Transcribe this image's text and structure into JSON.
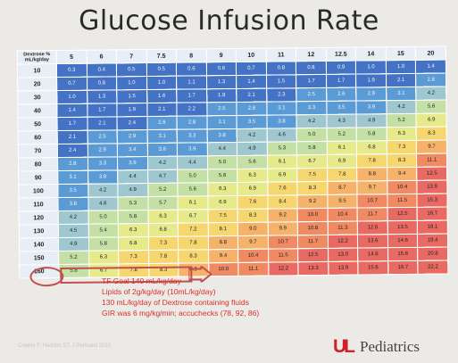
{
  "slide": {
    "title": "Glucose Infusion Rate",
    "notes": [
      "TF Goal 140 mL/kg/day",
      "Lipids of 2g/kg/day (10mL/kg/day)",
      "130 mL/kg/day of Dextrose containing fluids",
      "GIR was 6 mg/kg/min; accuchecks (78, 92, 86)"
    ],
    "citation": "Cowley F, Haddon ST, J Perinatol 2015",
    "logo_mark": "UL",
    "logo_text": "Pediatrics"
  },
  "table": {
    "corner_label_1": "Dextrose %",
    "corner_label_2": "mL/kg/day",
    "dextrose_columns": [
      "5",
      "6",
      "7",
      "7.5",
      "8",
      "9",
      "10",
      "11",
      "12",
      "12.5",
      "14",
      "15",
      "20"
    ],
    "row_labels": [
      "10",
      "20",
      "30",
      "40",
      "50",
      "60",
      "70",
      "80",
      "90",
      "100",
      "110",
      "120",
      "130",
      "140",
      "150",
      "160"
    ],
    "cells": [
      [
        "0.3",
        "0.4",
        "0.5",
        "0.5",
        "0.6",
        "0.6",
        "0.7",
        "0.8",
        "0.8",
        "0.9",
        "1.0",
        "1.0",
        "1.4"
      ],
      [
        "0.7",
        "0.8",
        "1.0",
        "1.0",
        "1.1",
        "1.3",
        "1.4",
        "1.5",
        "1.7",
        "1.7",
        "1.9",
        "2.1",
        "2.8"
      ],
      [
        "1.0",
        "1.3",
        "1.5",
        "1.6",
        "1.7",
        "1.9",
        "2.1",
        "2.3",
        "2.5",
        "2.6",
        "2.9",
        "3.1",
        "4.2"
      ],
      [
        "1.4",
        "1.7",
        "1.9",
        "2.1",
        "2.2",
        "2.5",
        "2.8",
        "3.1",
        "3.3",
        "3.5",
        "3.9",
        "4.2",
        "5.6"
      ],
      [
        "1.7",
        "2.1",
        "2.4",
        "2.6",
        "2.8",
        "3.1",
        "3.5",
        "3.8",
        "4.2",
        "4.3",
        "4.9",
        "5.2",
        "6.9"
      ],
      [
        "2.1",
        "2.5",
        "2.9",
        "3.1",
        "3.3",
        "3.8",
        "4.2",
        "4.6",
        "5.0",
        "5.2",
        "5.8",
        "6.3",
        "8.3"
      ],
      [
        "2.4",
        "2.9",
        "3.4",
        "3.6",
        "3.9",
        "4.4",
        "4.9",
        "5.3",
        "5.8",
        "6.1",
        "6.8",
        "7.3",
        "9.7"
      ],
      [
        "2.8",
        "3.3",
        "3.9",
        "4.2",
        "4.4",
        "5.0",
        "5.6",
        "6.1",
        "6.7",
        "6.9",
        "7.8",
        "8.3",
        "11.1"
      ],
      [
        "3.1",
        "3.8",
        "4.4",
        "4.7",
        "5.0",
        "5.6",
        "6.3",
        "6.9",
        "7.5",
        "7.8",
        "8.8",
        "9.4",
        "12.5"
      ],
      [
        "3.5",
        "4.2",
        "4.9",
        "5.2",
        "5.6",
        "6.3",
        "6.9",
        "7.6",
        "8.3",
        "8.7",
        "9.7",
        "10.4",
        "13.9"
      ],
      [
        "3.8",
        "4.6",
        "5.3",
        "5.7",
        "6.1",
        "6.9",
        "7.6",
        "8.4",
        "9.2",
        "9.5",
        "10.7",
        "11.5",
        "15.3"
      ],
      [
        "4.2",
        "5.0",
        "5.8",
        "6.3",
        "6.7",
        "7.5",
        "8.3",
        "9.2",
        "10.0",
        "10.4",
        "11.7",
        "12.5",
        "16.7"
      ],
      [
        "4.5",
        "5.4",
        "6.3",
        "6.8",
        "7.2",
        "8.1",
        "9.0",
        "9.9",
        "10.8",
        "11.3",
        "12.6",
        "13.5",
        "18.1"
      ],
      [
        "4.9",
        "5.8",
        "6.8",
        "7.3",
        "7.8",
        "8.8",
        "9.7",
        "10.7",
        "11.7",
        "12.2",
        "13.6",
        "14.6",
        "19.4"
      ],
      [
        "5.2",
        "6.3",
        "7.3",
        "7.8",
        "8.3",
        "9.4",
        "10.4",
        "11.5",
        "12.5",
        "13.0",
        "14.6",
        "15.6",
        "20.8"
      ],
      [
        "5.6",
        "6.7",
        "7.8",
        "8.3",
        "8.9",
        "10.0",
        "11.1",
        "12.2",
        "13.3",
        "13.9",
        "15.6",
        "16.7",
        "22.2"
      ]
    ],
    "highlighted_row_label": "130"
  },
  "colors": {
    "header_bg": "#e8eef6",
    "title_text": "#2a2a2a",
    "notes_text": "#d9302a",
    "highlight": "#c0504d",
    "logo_red": "#cc2229"
  }
}
